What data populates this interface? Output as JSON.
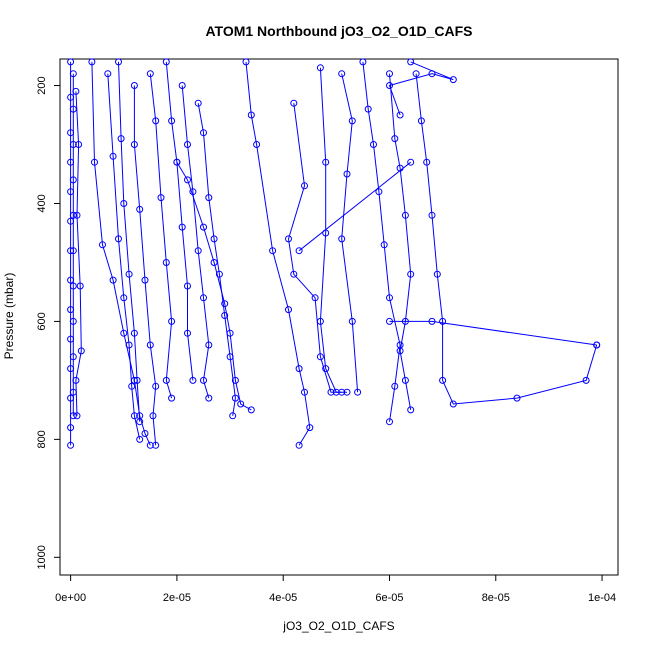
{
  "chart_data": {
    "type": "scatter",
    "title": "ATOM1 Northbound jO3_O2_O1D_CAFS",
    "xlabel": "jO3_O2_O1D_CAFS",
    "ylabel": "Pressure (mbar)",
    "xlim": [
      -2e-06,
      0.000103
    ],
    "ylim": [
      1030,
      155
    ],
    "y_reversed": true,
    "x_ticks": [
      0,
      2e-05,
      4e-05,
      6e-05,
      8e-05,
      0.0001
    ],
    "x_tick_labels": [
      "0e+00",
      "2e-05",
      "4e-05",
      "6e-05",
      "8e-05",
      "1e-04"
    ],
    "y_ticks": [
      200,
      400,
      600,
      800,
      1000
    ],
    "y_tick_labels": [
      "200",
      "400",
      "600",
      "800",
      "1000"
    ],
    "grid": false,
    "legend": "none",
    "color": "#0000ff",
    "marker": "open-circle",
    "series": [
      {
        "points": [
          [
            0,
            160
          ],
          [
            0,
            220
          ],
          [
            0,
            280
          ],
          [
            0,
            330
          ],
          [
            0,
            380
          ],
          [
            0,
            430
          ],
          [
            0,
            480
          ],
          [
            0,
            530
          ],
          [
            0,
            580
          ],
          [
            0,
            630
          ],
          [
            0,
            680
          ],
          [
            0,
            730
          ],
          [
            0,
            780
          ],
          [
            0,
            810
          ]
        ]
      },
      {
        "points": [
          [
            5e-07,
            180
          ],
          [
            5e-07,
            240
          ],
          [
            5e-07,
            300
          ],
          [
            5e-07,
            360
          ],
          [
            5e-07,
            420
          ],
          [
            5e-07,
            480
          ],
          [
            5e-07,
            540
          ],
          [
            5e-07,
            600
          ],
          [
            5e-07,
            660
          ],
          [
            5e-07,
            720
          ],
          [
            5e-07,
            760
          ]
        ]
      },
      {
        "points": [
          [
            1e-06,
            210
          ],
          [
            1.5e-06,
            300
          ],
          [
            1.2e-06,
            420
          ],
          [
            1.8e-06,
            540
          ],
          [
            2e-06,
            650
          ],
          [
            1e-06,
            700
          ],
          [
            1.2e-06,
            760
          ]
        ]
      },
      {
        "points": [
          [
            4e-06,
            160
          ],
          [
            4.5e-06,
            330
          ],
          [
            6e-06,
            470
          ],
          [
            8e-06,
            530
          ],
          [
            1e-05,
            620
          ],
          [
            1.2e-05,
            700
          ],
          [
            1.3e-05,
            760
          ],
          [
            1.4e-05,
            790
          ],
          [
            1.5e-05,
            810
          ]
        ]
      },
      {
        "points": [
          [
            7e-06,
            180
          ],
          [
            8e-06,
            320
          ],
          [
            9e-06,
            460
          ],
          [
            1e-05,
            560
          ],
          [
            1.1e-05,
            640
          ],
          [
            1.15e-05,
            710
          ],
          [
            1.2e-05,
            760
          ],
          [
            1.3e-05,
            800
          ]
        ]
      },
      {
        "points": [
          [
            9e-06,
            160
          ],
          [
            9.5e-06,
            290
          ],
          [
            1e-05,
            400
          ],
          [
            1.1e-05,
            520
          ],
          [
            1.2e-05,
            620
          ],
          [
            1.25e-05,
            700
          ],
          [
            1.3e-05,
            770
          ]
        ]
      },
      {
        "points": [
          [
            1.2e-05,
            200
          ],
          [
            1.2e-05,
            300
          ],
          [
            1.3e-05,
            410
          ],
          [
            1.4e-05,
            530
          ],
          [
            1.5e-05,
            640
          ],
          [
            1.6e-05,
            710
          ],
          [
            1.55e-05,
            760
          ],
          [
            1.6e-05,
            810
          ]
        ]
      },
      {
        "points": [
          [
            1.5e-05,
            180
          ],
          [
            1.6e-05,
            260
          ],
          [
            1.7e-05,
            390
          ],
          [
            1.8e-05,
            500
          ],
          [
            1.9e-05,
            600
          ],
          [
            1.8e-05,
            700
          ],
          [
            1.9e-05,
            730
          ]
        ]
      },
      {
        "points": [
          [
            1.8e-05,
            160
          ],
          [
            1.9e-05,
            260
          ],
          [
            2e-05,
            330
          ],
          [
            2.1e-05,
            440
          ],
          [
            2.2e-05,
            540
          ],
          [
            2.2e-05,
            620
          ],
          [
            2.3e-05,
            700
          ]
        ]
      },
      {
        "points": [
          [
            2.1e-05,
            200
          ],
          [
            2.2e-05,
            300
          ],
          [
            2.3e-05,
            380
          ],
          [
            2.4e-05,
            480
          ],
          [
            2.5e-05,
            560
          ],
          [
            2.6e-05,
            640
          ],
          [
            2.5e-05,
            700
          ],
          [
            2.6e-05,
            730
          ]
        ]
      },
      {
        "points": [
          [
            2.4e-05,
            230
          ],
          [
            2.5e-05,
            280
          ],
          [
            2.6e-05,
            390
          ],
          [
            2.7e-05,
            460
          ],
          [
            2.8e-05,
            520
          ],
          [
            2.9e-05,
            590
          ],
          [
            3e-05,
            660
          ],
          [
            3.1e-05,
            730
          ],
          [
            3.05e-05,
            760
          ]
        ]
      },
      {
        "points": [
          [
            2e-05,
            330
          ],
          [
            2.2e-05,
            360
          ],
          [
            2.5e-05,
            440
          ],
          [
            2.7e-05,
            500
          ],
          [
            2.9e-05,
            570
          ],
          [
            3e-05,
            620
          ],
          [
            3.1e-05,
            700
          ],
          [
            3.2e-05,
            740
          ],
          [
            3.4e-05,
            750
          ]
        ]
      },
      {
        "points": [
          [
            3.3e-05,
            160
          ],
          [
            3.4e-05,
            250
          ],
          [
            3.5e-05,
            300
          ],
          [
            3.8e-05,
            480
          ],
          [
            4.1e-05,
            580
          ],
          [
            4.3e-05,
            680
          ],
          [
            4.4e-05,
            720
          ],
          [
            4.5e-05,
            780
          ],
          [
            4.3e-05,
            810
          ]
        ]
      },
      {
        "points": [
          [
            4.2e-05,
            230
          ],
          [
            4.4e-05,
            370
          ],
          [
            4.1e-05,
            460
          ],
          [
            4.2e-05,
            520
          ],
          [
            4.6e-05,
            560
          ],
          [
            4.7e-05,
            660
          ],
          [
            4.9e-05,
            720
          ],
          [
            5.1e-05,
            720
          ]
        ]
      },
      {
        "points": [
          [
            4.7e-05,
            170
          ],
          [
            4.8e-05,
            330
          ],
          [
            4.8e-05,
            450
          ],
          [
            4.7e-05,
            600
          ],
          [
            4.8e-05,
            680
          ],
          [
            5e-05,
            720
          ],
          [
            5.2e-05,
            720
          ]
        ]
      },
      {
        "points": [
          [
            5.1e-05,
            180
          ],
          [
            5.3e-05,
            260
          ],
          [
            5.2e-05,
            350
          ],
          [
            5.1e-05,
            460
          ],
          [
            5.3e-05,
            600
          ],
          [
            5.4e-05,
            720
          ]
        ]
      },
      {
        "points": [
          [
            5.5e-05,
            160
          ],
          [
            5.6e-05,
            240
          ],
          [
            5.7e-05,
            300
          ],
          [
            5.8e-05,
            380
          ],
          [
            5.9e-05,
            470
          ],
          [
            6e-05,
            560
          ],
          [
            6.2e-05,
            640
          ],
          [
            6.1e-05,
            710
          ],
          [
            6e-05,
            770
          ]
        ]
      },
      {
        "points": [
          [
            6e-05,
            180
          ],
          [
            6.1e-05,
            290
          ],
          [
            6.2e-05,
            340
          ],
          [
            6.3e-05,
            420
          ],
          [
            6.4e-05,
            520
          ],
          [
            6.3e-05,
            600
          ],
          [
            6.2e-05,
            650
          ],
          [
            6.3e-05,
            700
          ],
          [
            6.4e-05,
            750
          ]
        ]
      },
      {
        "points": [
          [
            6.5e-05,
            180
          ],
          [
            6.6e-05,
            260
          ],
          [
            6.7e-05,
            330
          ],
          [
            6.8e-05,
            420
          ],
          [
            6.9e-05,
            520
          ],
          [
            7e-05,
            600
          ],
          [
            7e-05,
            700
          ],
          [
            7.2e-05,
            740
          ],
          [
            8.4e-05,
            730
          ],
          [
            9.7e-05,
            700
          ],
          [
            9.9e-05,
            640
          ]
        ]
      },
      {
        "points": [
          [
            6e-05,
            600
          ],
          [
            6.8e-05,
            600
          ],
          [
            9.9e-05,
            640
          ]
        ]
      },
      {
        "points": [
          [
            4.3e-05,
            480
          ],
          [
            6.4e-05,
            330
          ]
        ]
      },
      {
        "points": [
          [
            6.4e-05,
            160
          ],
          [
            7.2e-05,
            190
          ],
          [
            6.8e-05,
            180
          ],
          [
            6e-05,
            200
          ],
          [
            6.2e-05,
            250
          ]
        ]
      }
    ]
  }
}
